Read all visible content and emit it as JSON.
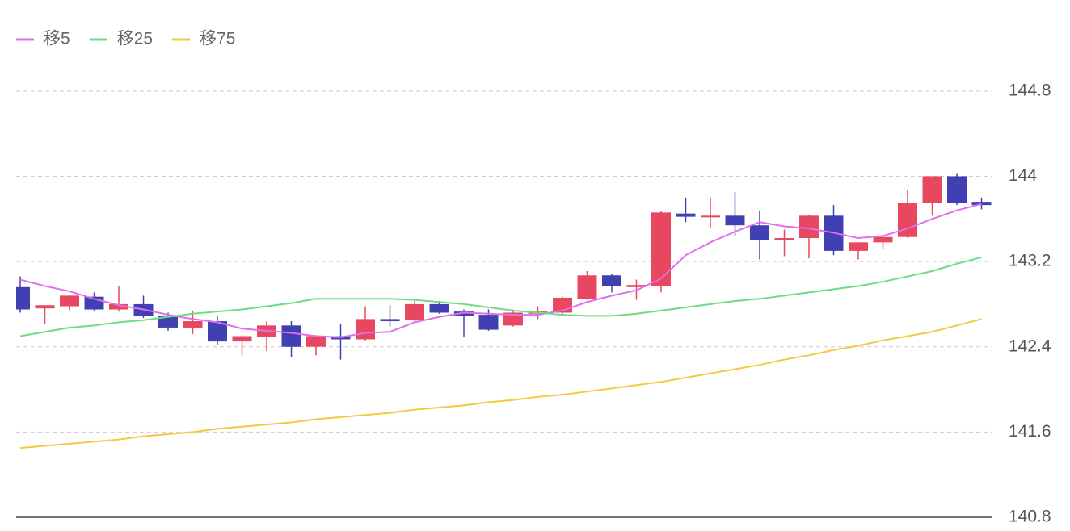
{
  "chart_data": {
    "type": "candlestick",
    "up_color": "#e8485f",
    "down_color": "#4040b4",
    "open": [
      142.96,
      142.76,
      142.78,
      142.87,
      142.75,
      142.8,
      142.69,
      142.58,
      142.64,
      142.45,
      142.49,
      142.6,
      142.4,
      142.5,
      142.47,
      142.66,
      142.65,
      142.8,
      142.73,
      142.7,
      142.6,
      142.71,
      142.72,
      142.85,
      143.07,
      142.96,
      142.97,
      143.65,
      143.62,
      143.63,
      143.54,
      143.4,
      143.42,
      143.63,
      143.3,
      143.38,
      143.43,
      143.75,
      144.0,
      143.76
    ],
    "high": [
      143.06,
      142.79,
      142.89,
      142.91,
      142.97,
      142.88,
      142.72,
      142.74,
      142.69,
      142.51,
      142.64,
      142.64,
      142.51,
      142.61,
      142.78,
      142.79,
      142.83,
      142.83,
      142.75,
      142.75,
      142.75,
      142.78,
      142.87,
      143.11,
      143.08,
      143.03,
      143.67,
      143.8,
      143.8,
      143.85,
      143.68,
      143.5,
      143.64,
      143.73,
      143.38,
      143.44,
      143.87,
      144.0,
      144.03,
      143.8
    ],
    "low": [
      142.72,
      142.61,
      142.74,
      142.74,
      142.73,
      142.67,
      142.55,
      142.52,
      142.42,
      142.32,
      142.36,
      142.3,
      142.32,
      142.28,
      142.46,
      142.59,
      142.64,
      142.71,
      142.49,
      142.55,
      142.59,
      142.66,
      142.7,
      142.84,
      142.91,
      142.84,
      142.91,
      143.57,
      143.51,
      143.44,
      143.22,
      143.25,
      143.23,
      143.26,
      143.22,
      143.32,
      143.42,
      143.63,
      143.73,
      143.69
    ],
    "close": [
      142.75,
      142.79,
      142.88,
      142.75,
      142.8,
      142.69,
      142.58,
      142.64,
      142.45,
      142.5,
      142.6,
      142.4,
      142.5,
      142.47,
      142.66,
      142.64,
      142.8,
      142.72,
      142.69,
      142.56,
      142.72,
      142.73,
      142.86,
      143.07,
      142.97,
      142.98,
      143.66,
      143.62,
      143.63,
      143.54,
      143.4,
      143.42,
      143.63,
      143.3,
      143.38,
      143.43,
      143.75,
      144.0,
      143.75,
      143.73
    ],
    "lines": [
      {
        "name": "移5",
        "color": "#e070e8",
        "values": [
          143.03,
          142.97,
          142.92,
          142.85,
          142.79,
          142.75,
          142.7,
          142.66,
          142.63,
          142.57,
          142.55,
          142.53,
          142.5,
          142.49,
          142.53,
          142.54,
          142.63,
          142.68,
          142.72,
          142.71,
          142.7,
          142.7,
          142.74,
          142.82,
          142.88,
          142.93,
          143.04,
          143.26,
          143.38,
          143.48,
          143.57,
          143.53,
          143.51,
          143.47,
          143.42,
          143.44,
          143.51,
          143.6,
          143.68,
          143.74
        ]
      },
      {
        "name": "移25",
        "color": "#6ddc84",
        "values": [
          142.5,
          142.54,
          142.58,
          142.6,
          142.63,
          142.65,
          142.68,
          142.71,
          142.73,
          142.75,
          142.78,
          142.81,
          142.85,
          142.85,
          142.85,
          142.85,
          142.84,
          142.82,
          142.8,
          142.77,
          142.74,
          142.72,
          142.7,
          142.69,
          142.69,
          142.71,
          142.74,
          142.77,
          142.8,
          142.83,
          142.85,
          142.88,
          142.91,
          142.94,
          142.97,
          143.01,
          143.06,
          143.11,
          143.18,
          143.24
        ]
      },
      {
        "name": "移75",
        "color": "#f5c842",
        "values": [
          141.45,
          141.47,
          141.49,
          141.51,
          141.53,
          141.56,
          141.58,
          141.6,
          141.63,
          141.65,
          141.67,
          141.69,
          141.72,
          141.74,
          141.76,
          141.78,
          141.81,
          141.83,
          141.85,
          141.88,
          141.9,
          141.93,
          141.95,
          141.98,
          142.01,
          142.04,
          142.07,
          142.11,
          142.15,
          142.19,
          142.23,
          142.28,
          142.32,
          142.37,
          142.41,
          142.46,
          142.5,
          142.54,
          142.6,
          142.66
        ]
      }
    ],
    "ylim": [
      140.8,
      145.2
    ],
    "yticks": [
      140.8,
      141.6,
      142.4,
      143.2,
      144,
      144.8
    ],
    "grid": true
  }
}
